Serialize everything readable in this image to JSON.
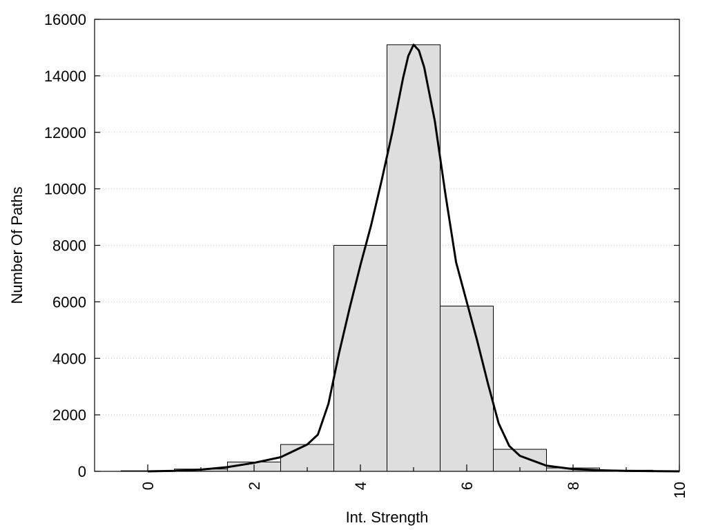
{
  "chart_data": {
    "type": "bar",
    "title": "",
    "xlabel": "Int. Strength",
    "ylabel": "Number Of Paths",
    "xlim": [
      -1,
      10
    ],
    "ylim": [
      0,
      16000
    ],
    "x_ticks": [
      0,
      2,
      4,
      6,
      8,
      10
    ],
    "y_ticks": [
      0,
      2000,
      4000,
      6000,
      8000,
      10000,
      12000,
      14000,
      16000
    ],
    "grid": "horizontal dotted",
    "legend": "none",
    "histogram": {
      "bin_centers": [
        0,
        1,
        2,
        3,
        4,
        5,
        6,
        7,
        8,
        9
      ],
      "values": [
        20,
        80,
        330,
        950,
        8000,
        15100,
        5850,
        780,
        120,
        40
      ],
      "fill_color": "#dedede",
      "edge_color": "#000000"
    },
    "fit_curve": {
      "x": [
        0,
        0.5,
        1,
        1.5,
        2,
        2.5,
        3,
        3.2,
        3.4,
        3.6,
        3.8,
        4,
        4.2,
        4.4,
        4.6,
        4.8,
        4.9,
        5.0,
        5.1,
        5.2,
        5.4,
        5.6,
        5.8,
        6,
        6.2,
        6.4,
        6.6,
        6.8,
        7,
        7.5,
        8,
        8.5,
        9,
        10
      ],
      "y": [
        0,
        20,
        60,
        150,
        300,
        500,
        950,
        1300,
        2400,
        4200,
        5800,
        7300,
        8700,
        10300,
        12000,
        13900,
        14700,
        15100,
        14900,
        14300,
        12400,
        9800,
        7400,
        6000,
        4600,
        3100,
        1700,
        900,
        550,
        200,
        80,
        40,
        15,
        0
      ],
      "color": "#000000"
    }
  }
}
